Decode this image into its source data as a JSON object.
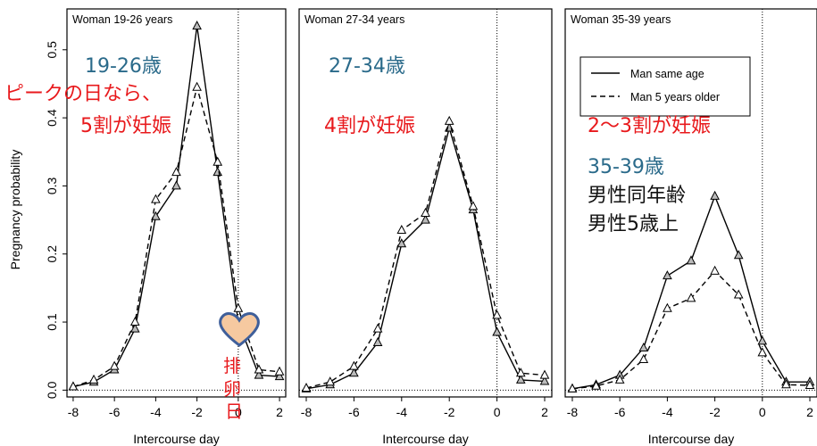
{
  "colors": {
    "annotation_red": "#e8191c",
    "annotation_teal": "#2a6a8a",
    "annotation_black": "#111111",
    "heart_fill": "#f6c9a0",
    "heart_stroke": "#3f5f9a"
  },
  "chart_data": [
    {
      "type": "line",
      "title": "Woman 19-26 years",
      "xlabel": "Intercourse day",
      "ylabel": "Pregnancy probability",
      "x": [
        -8,
        -7,
        -6,
        -5,
        -4,
        -3,
        -2,
        -1,
        0,
        1,
        2
      ],
      "xticks": [
        "-8",
        "-6",
        "-4",
        "-2",
        "0",
        "2"
      ],
      "yticks": [
        "0.0",
        "0.1",
        "0.2",
        "0.3",
        "0.4",
        "0.5"
      ],
      "xlim": [
        -8.3,
        2.3
      ],
      "ylim": [
        -0.01,
        0.56
      ],
      "series": [
        {
          "name": "Man same age",
          "style": "solid",
          "values": [
            0.005,
            0.012,
            0.03,
            0.09,
            0.255,
            0.3,
            0.535,
            0.32,
            0.1,
            0.022,
            0.02
          ]
        },
        {
          "name": "Man 5 years older",
          "style": "dashed",
          "values": [
            0.005,
            0.015,
            0.035,
            0.1,
            0.28,
            0.32,
            0.445,
            0.335,
            0.12,
            0.03,
            0.027
          ]
        }
      ],
      "annotations": [
        {
          "text": "19-26歳",
          "color": "teal"
        },
        {
          "text": "ピークの日なら、",
          "color": "red"
        },
        {
          "text": "5割が妊娠",
          "color": "red"
        },
        {
          "text": "排",
          "color": "red"
        },
        {
          "text": "卵",
          "color": "red"
        },
        {
          "text": "日",
          "color": "red"
        }
      ]
    },
    {
      "type": "line",
      "title": "Woman 27-34 years",
      "xlabel": "Intercourse day",
      "xticks": [
        "-8",
        "-6",
        "-4",
        "-2",
        "0",
        "2"
      ],
      "xlim": [
        -8.3,
        2.3
      ],
      "ylim": [
        -0.01,
        0.56
      ],
      "x": [
        -8,
        -7,
        -6,
        -5,
        -4,
        -3,
        -2,
        -1,
        0,
        1,
        2
      ],
      "series": [
        {
          "name": "Man same age",
          "style": "solid",
          "values": [
            0.002,
            0.008,
            0.025,
            0.07,
            0.215,
            0.25,
            0.385,
            0.265,
            0.085,
            0.015,
            0.013
          ]
        },
        {
          "name": "Man 5 years older",
          "style": "dashed",
          "values": [
            0.003,
            0.012,
            0.035,
            0.09,
            0.235,
            0.26,
            0.395,
            0.27,
            0.11,
            0.025,
            0.022
          ]
        }
      ],
      "annotations": [
        {
          "text": "27-34歳",
          "color": "teal"
        },
        {
          "text": "4割が妊娠",
          "color": "red"
        }
      ]
    },
    {
      "type": "line",
      "title": "Woman 35-39 years",
      "xlabel": "Intercourse day",
      "xticks": [
        "-8",
        "-6",
        "-4",
        "-2",
        "0",
        "2"
      ],
      "xlim": [
        -8.3,
        2.3
      ],
      "ylim": [
        -0.01,
        0.56
      ],
      "x": [
        -8,
        -7,
        -6,
        -5,
        -4,
        -3,
        -2,
        -1,
        0,
        1,
        2
      ],
      "series": [
        {
          "name": "Man same age",
          "style": "solid",
          "values": [
            0.002,
            0.008,
            0.022,
            0.062,
            0.168,
            0.19,
            0.285,
            0.198,
            0.072,
            0.012,
            0.012
          ]
        },
        {
          "name": "Man 5 years older",
          "style": "dashed",
          "values": [
            0.002,
            0.006,
            0.015,
            0.045,
            0.12,
            0.135,
            0.175,
            0.14,
            0.055,
            0.008,
            0.007
          ]
        }
      ],
      "legend": {
        "position": "top-right",
        "entries": [
          "Man same age",
          "Man 5 years older"
        ]
      },
      "annotations": [
        {
          "text": "2～3割が妊娠",
          "color": "red"
        },
        {
          "text": "35-39歳",
          "color": "teal"
        },
        {
          "text": "男性同年齢",
          "color": "black"
        },
        {
          "text": "男性5歳上",
          "color": "black"
        }
      ]
    }
  ]
}
